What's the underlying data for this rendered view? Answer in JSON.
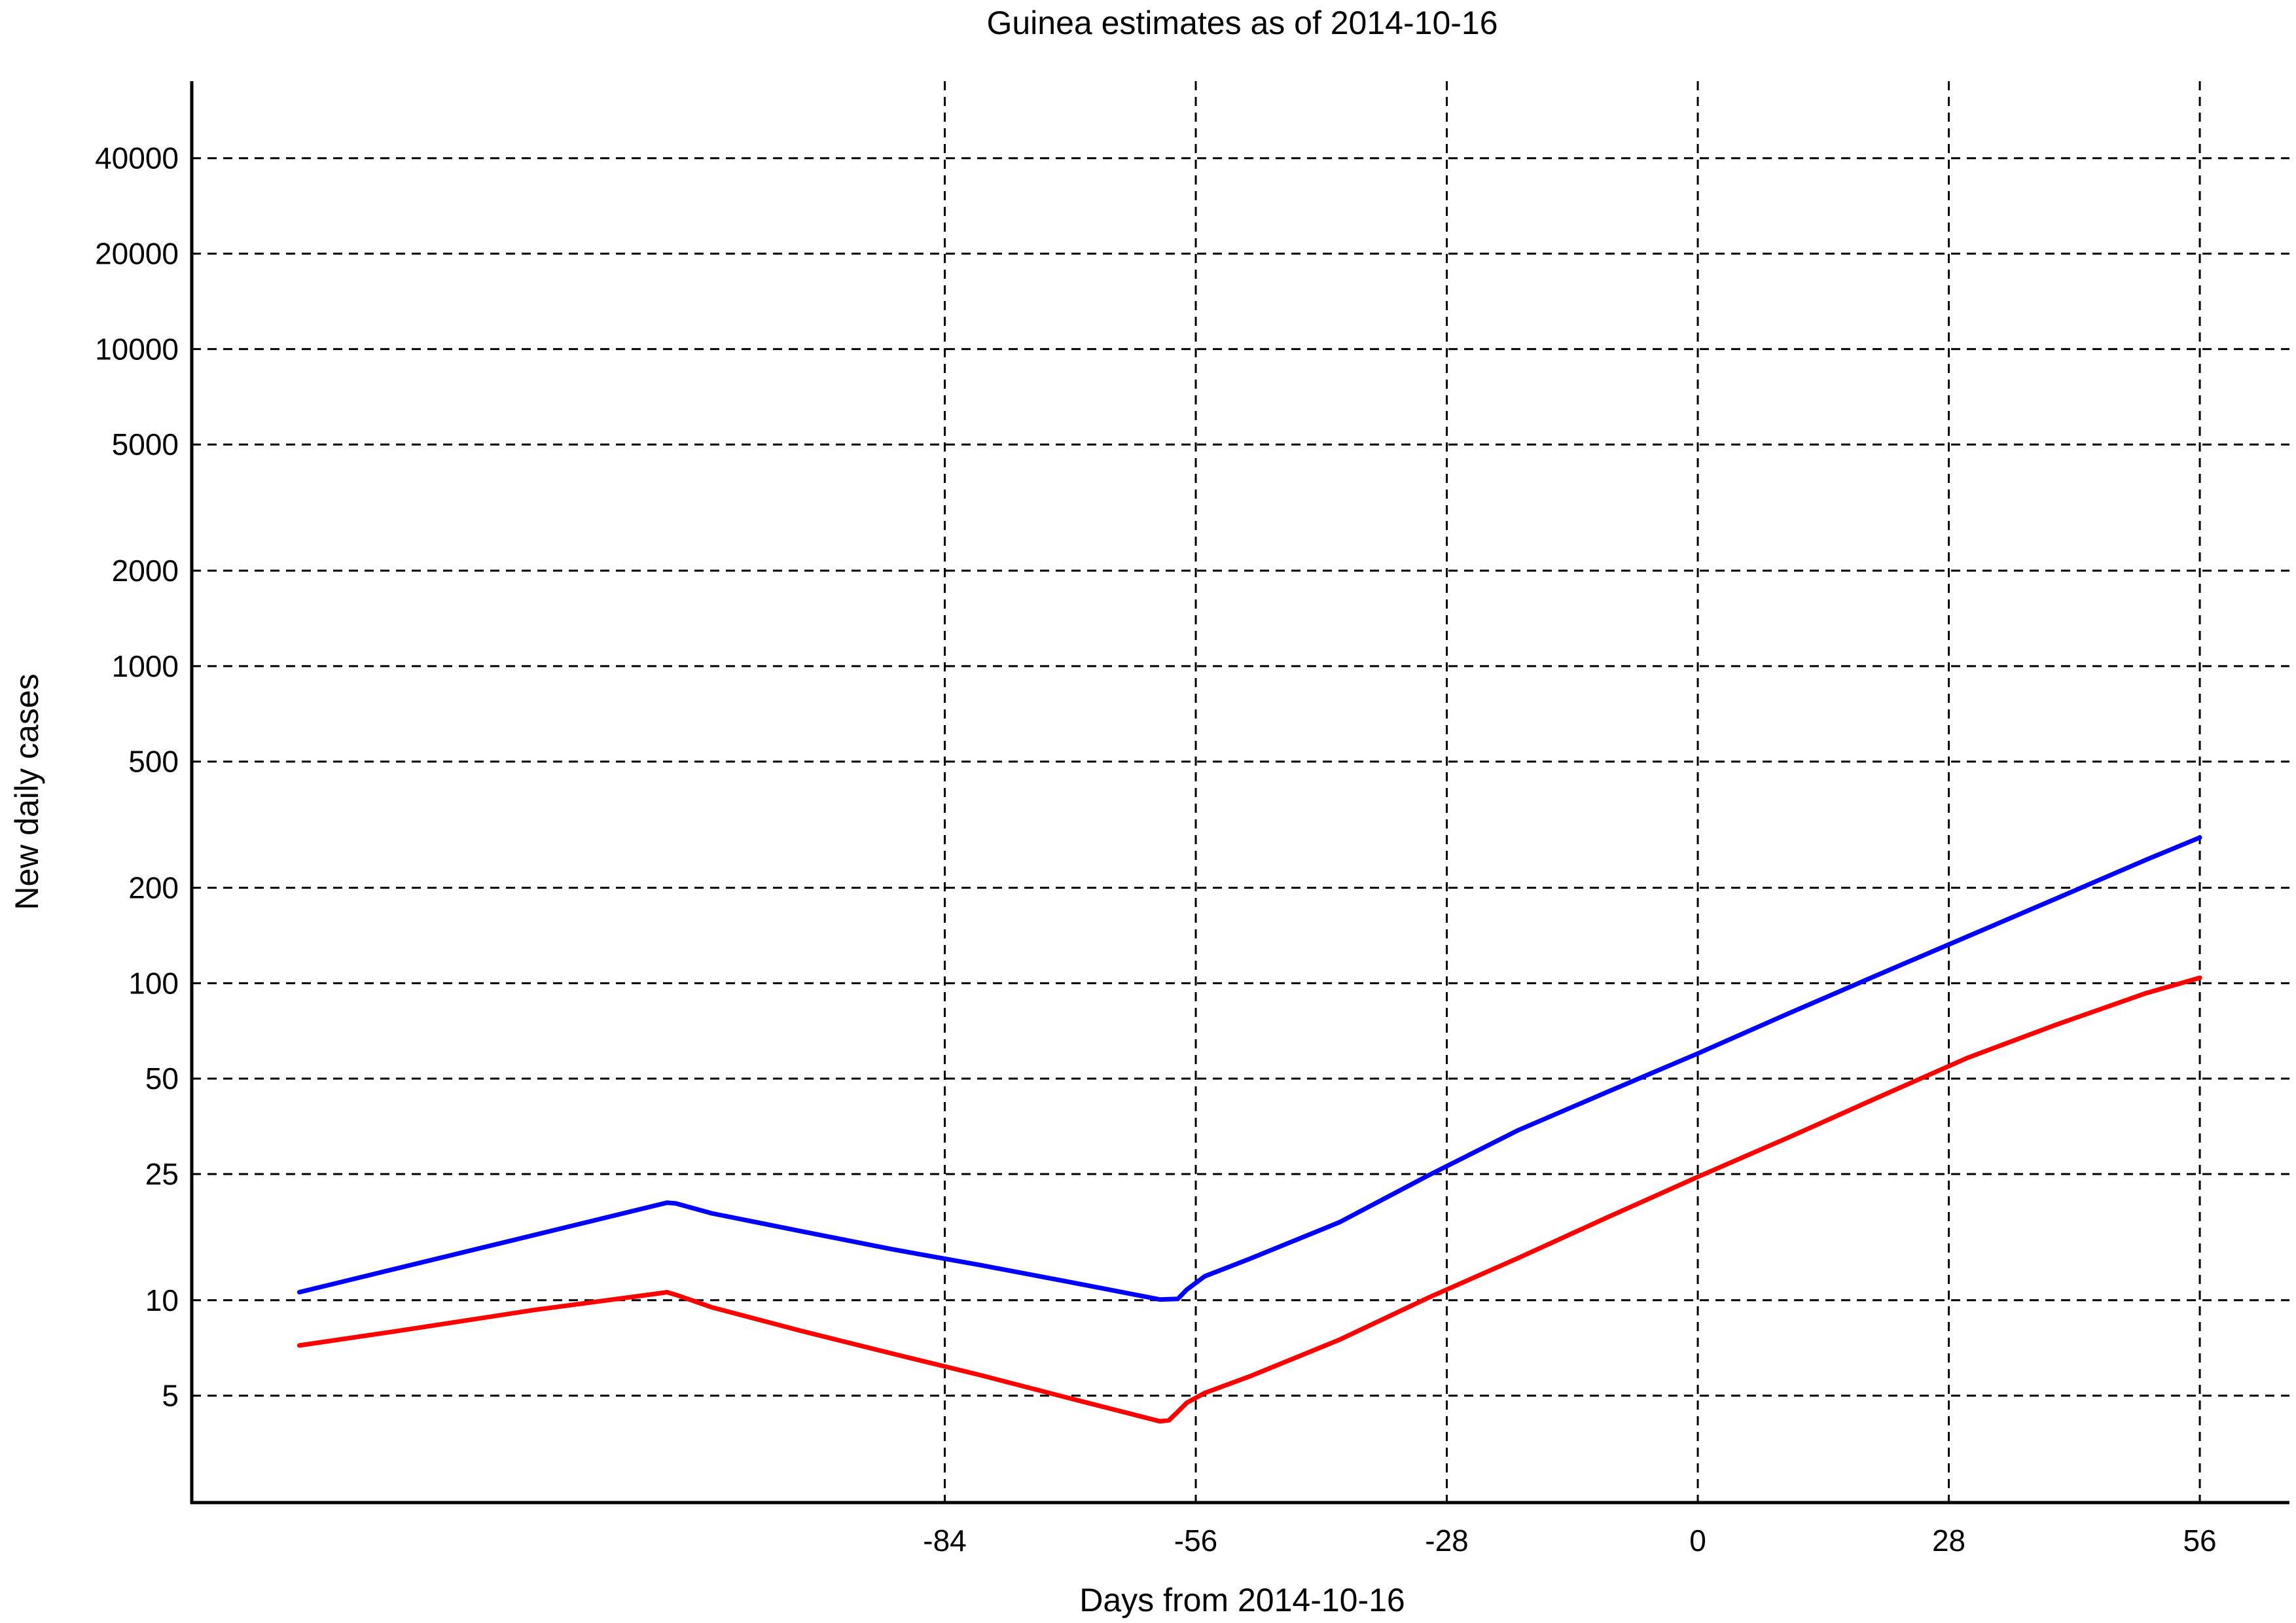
{
  "chart_data": {
    "type": "line",
    "title": "Guinea estimates as of 2014-10-16",
    "xlabel": "Days from 2014-10-16",
    "ylabel": "New daily cases",
    "x_scale": "linear",
    "y_scale": "log",
    "xlim": [
      -168,
      66
    ],
    "ylim": [
      2.3,
      70000
    ],
    "grid": true,
    "grid_style": "dashed",
    "legend": "none",
    "x_ticks": [
      -84,
      -56,
      -28,
      0,
      28,
      56
    ],
    "x_tick_labels": [
      "-84",
      "-56",
      "-28",
      "0",
      "28",
      "56"
    ],
    "y_ticks": [
      5,
      10,
      25,
      50,
      100,
      200,
      500,
      1000,
      2000,
      5000,
      10000,
      20000,
      40000
    ],
    "y_tick_labels": [
      "5",
      "10",
      "25",
      "50",
      "100",
      "200",
      "500",
      "1000",
      "2000",
      "5000",
      "10000",
      "20000",
      "40000"
    ],
    "series": [
      {
        "color": "#0000ff",
        "x": [
          -156,
          -115,
          -114,
          -110,
          -100,
          -90,
          -80,
          -70,
          -60,
          -58,
          -57,
          -55,
          -50,
          -40,
          -30,
          -20,
          -10,
          0,
          10,
          20,
          30,
          40,
          50,
          56
        ],
        "y": [
          10.6,
          20.3,
          20.2,
          18.8,
          16.5,
          14.5,
          12.9,
          11.4,
          10.05,
          10.1,
          10.8,
          11.9,
          13.5,
          17.6,
          24.8,
          34.4,
          45.5,
          60,
          80,
          106,
          140,
          185,
          245,
          288
        ]
      },
      {
        "color": "#ff0000",
        "x": [
          -156,
          -145,
          -130,
          -116,
          -115,
          -114,
          -110,
          -100,
          -90,
          -80,
          -70,
          -60,
          -59,
          -58,
          -57,
          -55,
          -50,
          -40,
          -30,
          -20,
          -10,
          0,
          10,
          20,
          30,
          40,
          50,
          56
        ],
        "y": [
          7.2,
          8.0,
          9.3,
          10.5,
          10.6,
          10.4,
          9.5,
          8.0,
          6.8,
          5.8,
          4.9,
          4.15,
          4.18,
          4.45,
          4.75,
          5.1,
          5.75,
          7.5,
          10.2,
          13.6,
          18.3,
          24.5,
          32.5,
          43.5,
          58,
          74,
          93,
          104
        ]
      }
    ]
  }
}
